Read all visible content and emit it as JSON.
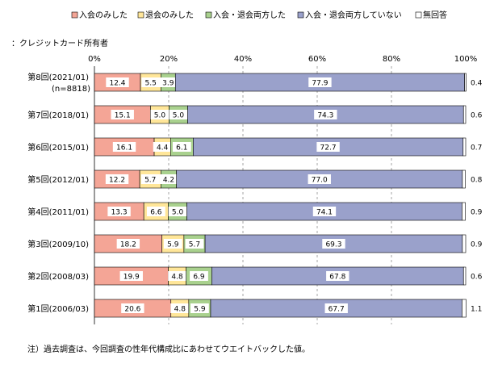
{
  "chart_data": {
    "type": "bar",
    "stacked": true,
    "orientation": "horizontal",
    "subtitle": "：クレジットカード所有者",
    "footnote": "注）過去調査は、今回調査の性年代構成比にあわせてウエイトバックした値。",
    "x_ticks": [
      "0%",
      "20%",
      "40%",
      "60%",
      "80%",
      "100%"
    ],
    "xlim": [
      0,
      100
    ],
    "legend_position": "top",
    "categories": [
      [
        "第8回(2021/01)",
        "(n=8818)"
      ],
      [
        "第7回(2018/01)"
      ],
      [
        "第6回(2015/01)"
      ],
      [
        "第5回(2012/01)"
      ],
      [
        "第4回(2011/01)"
      ],
      [
        "第3回(2009/10)"
      ],
      [
        "第2回(2008/03)"
      ],
      [
        "第1回(2006/03)"
      ]
    ],
    "series": [
      {
        "name": "入会のみした",
        "color": "#F4A596",
        "values": [
          12.4,
          15.1,
          16.1,
          12.2,
          13.3,
          18.2,
          19.9,
          20.6
        ]
      },
      {
        "name": "退会のみした",
        "color": "#FFE699",
        "values": [
          5.5,
          5.0,
          4.4,
          5.7,
          6.6,
          5.9,
          4.8,
          4.8
        ]
      },
      {
        "name": "入会・退会両方した",
        "color": "#A9D18E",
        "values": [
          3.9,
          5.0,
          6.1,
          4.2,
          5.0,
          5.7,
          6.9,
          5.9
        ]
      },
      {
        "name": "入会・退会両方していない",
        "color": "#9AA1CB",
        "values": [
          77.9,
          74.3,
          72.7,
          77.0,
          74.1,
          69.3,
          67.8,
          67.7
        ]
      },
      {
        "name": "無回答",
        "color": "#FFFFFF",
        "values": [
          0.4,
          0.6,
          0.7,
          0.8,
          0.9,
          0.9,
          0.6,
          1.1
        ]
      }
    ]
  }
}
